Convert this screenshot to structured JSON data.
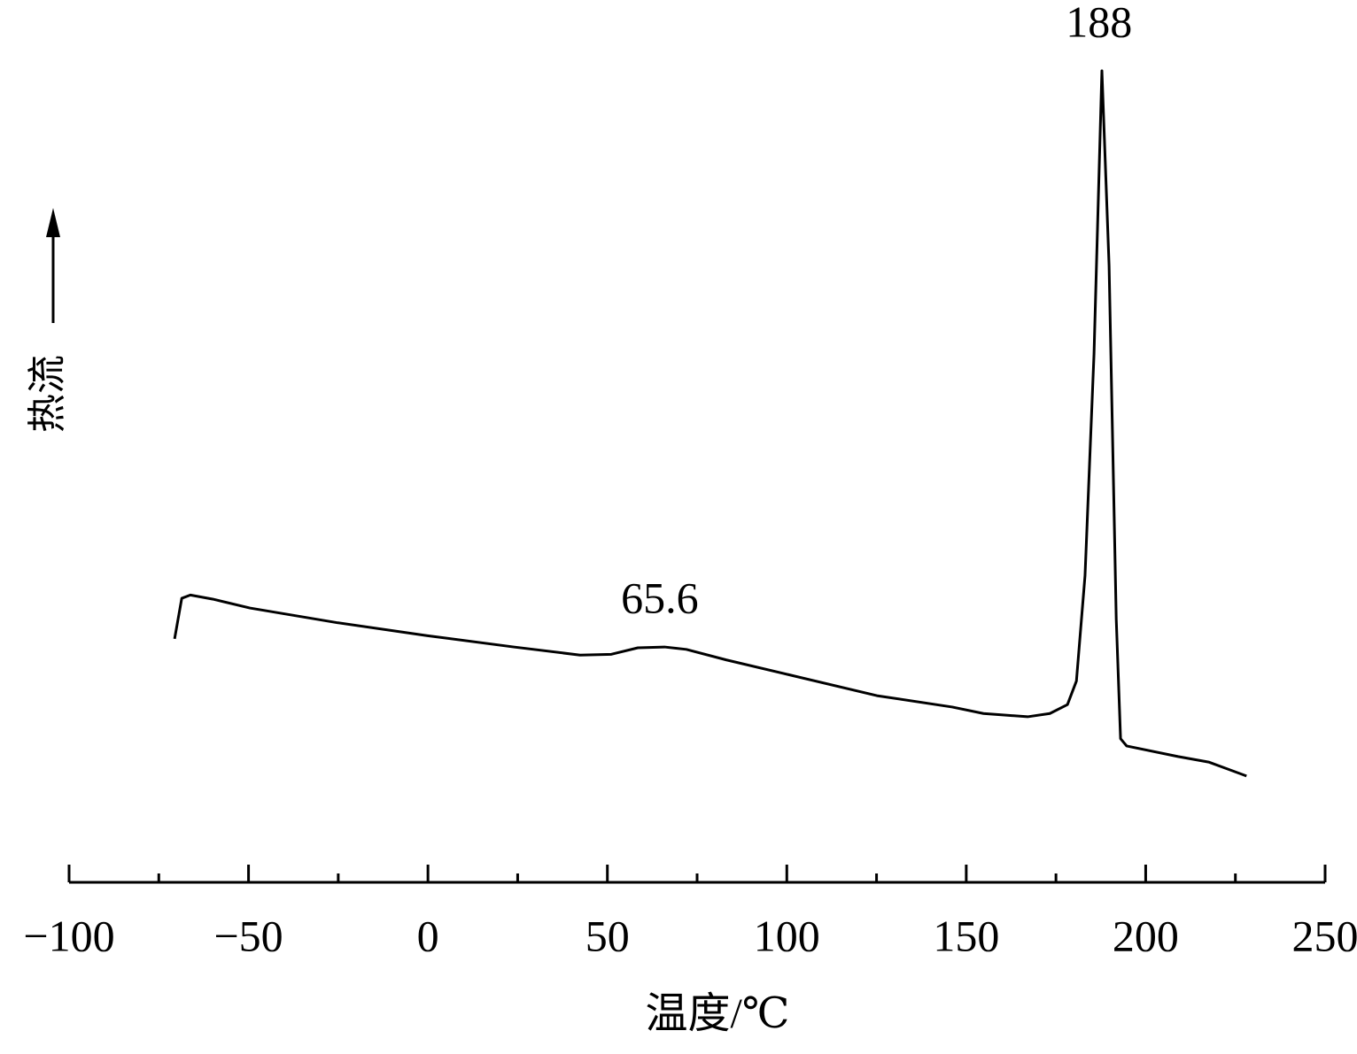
{
  "chart_data": {
    "type": "line",
    "x_label": "温度/℃",
    "y_label": "热流",
    "x": [
      -70.6,
      -68.6,
      -66.2,
      -60.0,
      -49.6,
      -25.4,
      -0.3,
      23.9,
      42.4,
      51.1,
      58.5,
      65.9,
      72.0,
      83.2,
      100.4,
      125.1,
      146.1,
      154.8,
      167.1,
      173.3,
      178.2,
      180.7,
      183.1,
      185.6,
      187.8,
      189.8,
      191.8,
      193.0,
      194.7,
      209.0,
      217.7,
      222.6,
      228.1
    ],
    "series": [
      {
        "color": "#000000",
        "values": [
          30.0,
          35.0,
          35.4,
          34.9,
          33.8,
          32.0,
          30.4,
          29.0,
          28.0,
          28.1,
          28.9,
          29.0,
          28.7,
          27.4,
          25.6,
          23.0,
          21.6,
          20.8,
          20.4,
          20.8,
          21.9,
          24.8,
          37.8,
          65.1,
          100.0,
          76.0,
          32.4,
          17.7,
          16.8,
          15.5,
          14.8,
          14.0,
          13.1
        ]
      }
    ],
    "annotations": [
      {
        "text": "65.6",
        "x": 65.6,
        "y": 29.0
      },
      {
        "text": "188",
        "x": 188,
        "y": 100.0
      }
    ],
    "xlim": [
      -100,
      250
    ],
    "xticks": [
      {
        "value": -100,
        "label": "−100"
      },
      {
        "value": -50,
        "label": "−50"
      },
      0,
      50,
      100,
      150,
      200,
      250
    ],
    "xminorticks": [
      -75,
      -25,
      25,
      75,
      125,
      175,
      225
    ],
    "ylim": [
      0,
      100
    ]
  }
}
